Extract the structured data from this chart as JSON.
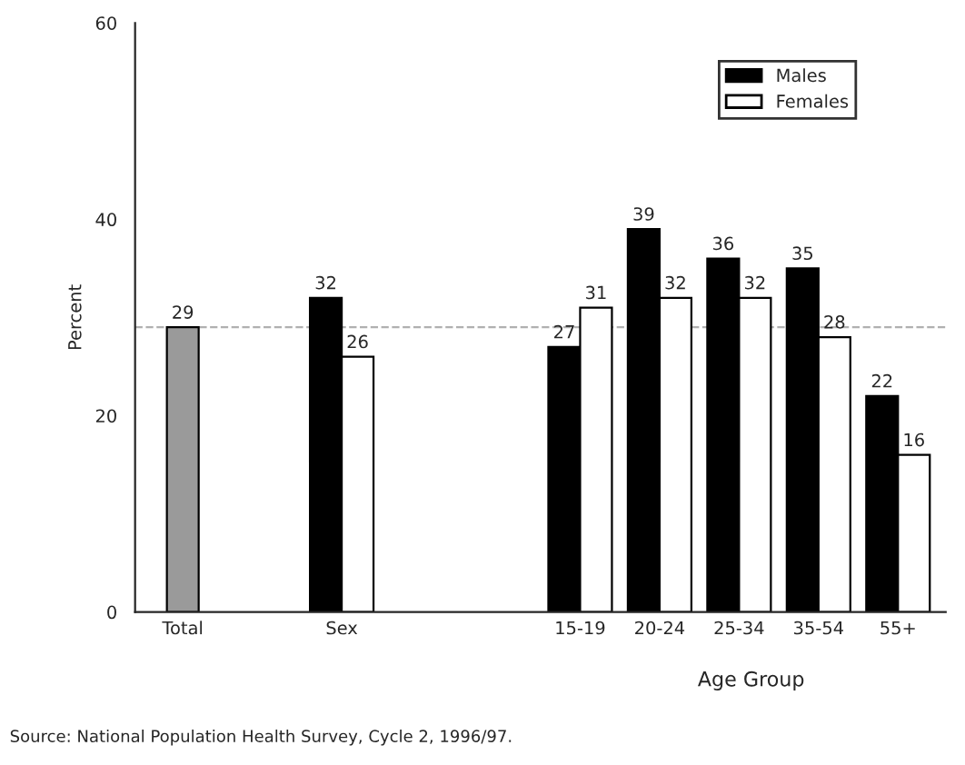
{
  "chart_data": {
    "type": "bar",
    "categories": [
      "Total",
      null,
      "Sex",
      null,
      null,
      "15-19",
      "20-24",
      "25-34",
      "35-54",
      "55+"
    ],
    "series": [
      {
        "color": "#9a9a9a",
        "values": [
          29,
          null,
          null,
          null,
          null,
          null,
          null,
          null,
          null,
          null
        ]
      },
      {
        "name": "Males",
        "color": "#000000",
        "values": [
          null,
          null,
          32,
          null,
          null,
          27,
          39,
          36,
          35,
          22
        ]
      },
      {
        "name": "Females",
        "color": "#ffffff",
        "values": [
          null,
          null,
          26,
          null,
          null,
          31,
          32,
          32,
          28,
          16
        ]
      }
    ],
    "ylabel": "Percent",
    "xlabel": "Age Group",
    "ylim": [
      0,
      60
    ],
    "yticks": [
      0,
      20,
      40,
      60
    ],
    "ref_lines": [
      {
        "axis": "y",
        "value": 29,
        "color": "#b0b0b0",
        "line_style": "dashed"
      }
    ],
    "data_labels": true,
    "legend": "top right",
    "grid": false,
    "annotations": [
      "Source: National Population Health Survey, Cycle 2, 1996/97."
    ]
  }
}
